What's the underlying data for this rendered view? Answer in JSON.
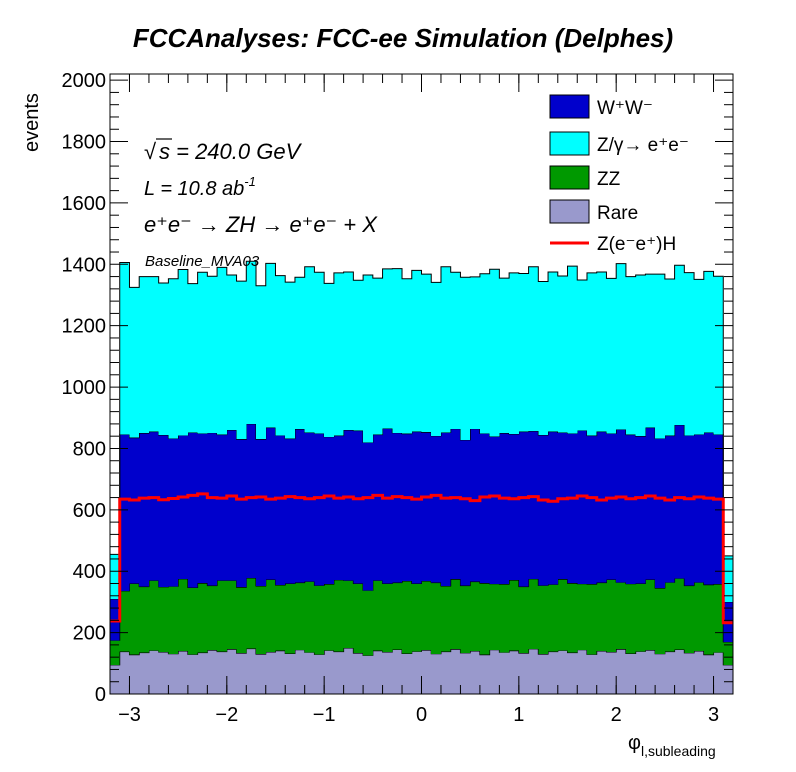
{
  "chart_data": {
    "type": "bar",
    "title": "FCCAnalyses: FCC-ee Simulation (Delphes)",
    "xlabel_main": "φ",
    "xlabel_sub": "l,subleading",
    "ylabel": "events",
    "xlim": [
      -3.2,
      3.2
    ],
    "ylim": [
      0,
      2020
    ],
    "x_ticks": [
      -3,
      -2,
      -1,
      0,
      1,
      2,
      3
    ],
    "x_tick_labels": [
      "−3",
      "−2",
      "−1",
      "0",
      "1",
      "2",
      "3"
    ],
    "y_ticks": [
      0,
      200,
      400,
      600,
      800,
      1000,
      1200,
      1400,
      1600,
      1800,
      2000
    ],
    "y_tick_labels": [
      "0",
      "200",
      "400",
      "600",
      "800",
      "1000",
      "1200",
      "1400",
      "1600",
      "1800",
      "2000"
    ],
    "bins": {
      "count": 64,
      "low": -3.2,
      "high": 3.2
    },
    "annotations": {
      "sqrt_s": "s = 240.0 GeV",
      "lumi_main": "L = 10.8 ab",
      "lumi_sup": "-1",
      "process": "e⁺e⁻ → ZH → e⁺e⁻ + X",
      "selection": "Baseline_MVA03"
    },
    "stack_order": [
      "Rare",
      "ZZ",
      "WW",
      "Zgamma"
    ],
    "series": [
      {
        "key": "Rare",
        "legend": "Rare",
        "color": "#9999cc",
        "values": [
          95,
          138,
          128,
          135,
          142,
          137,
          131,
          140,
          129,
          135,
          143,
          138,
          146,
          133,
          148,
          130,
          137,
          141,
          132,
          144,
          136,
          129,
          142,
          138,
          150,
          133,
          126,
          141,
          137,
          145,
          132,
          139,
          143,
          131,
          138,
          146,
          134,
          140,
          128,
          144,
          136,
          141,
          133,
          147,
          130,
          138,
          142,
          135,
          144,
          129,
          140,
          137,
          146,
          132,
          139,
          143,
          131,
          138,
          145,
          134,
          140,
          128,
          136,
          95
        ]
      },
      {
        "key": "ZZ",
        "legend": "ZZ",
        "color": "#009900",
        "values": [
          80,
          198,
          232,
          215,
          228,
          212,
          220,
          235,
          218,
          226,
          210,
          232,
          224,
          215,
          230,
          222,
          236,
          214,
          228,
          219,
          231,
          225,
          216,
          234,
          220,
          227,
          212,
          229,
          223,
          218,
          236,
          221,
          225,
          232,
          214,
          228,
          219,
          226,
          233,
          215,
          222,
          230,
          217,
          228,
          224,
          219,
          232,
          226,
          215,
          229,
          223,
          236,
          218,
          227,
          221,
          230,
          214,
          226,
          232,
          219,
          224,
          228,
          222,
          75
        ]
      },
      {
        "key": "WW",
        "legend": "W⁺W⁻",
        "color": "#0000cc",
        "values": [
          135,
          510,
          475,
          500,
          485,
          495,
          482,
          468,
          505,
          488,
          498,
          475,
          490,
          482,
          502,
          478,
          495,
          488,
          472,
          500,
          485,
          495,
          480,
          470,
          490,
          498,
          482,
          475,
          505,
          488,
          480,
          495,
          485,
          478,
          500,
          490,
          475,
          498,
          488,
          480,
          492,
          476,
          505,
          482,
          490,
          498,
          478,
          488,
          500,
          484,
          492,
          476,
          498,
          486,
          480,
          495,
          488,
          478,
          500,
          490,
          482,
          496,
          488,
          130
        ]
      },
      {
        "key": "Zgamma",
        "legend": "Z/γ→ e⁺e⁻",
        "color": "#00ffff",
        "values": [
          145,
          560,
          490,
          510,
          505,
          495,
          520,
          540,
          485,
          525,
          510,
          545,
          505,
          515,
          530,
          500,
          535,
          520,
          510,
          495,
          540,
          525,
          500,
          530,
          515,
          490,
          545,
          510,
          520,
          535,
          505,
          525,
          515,
          500,
          540,
          510,
          530,
          495,
          520,
          545,
          505,
          525,
          515,
          535,
          500,
          520,
          510,
          545,
          490,
          530,
          520,
          505,
          540,
          515,
          525,
          500,
          535,
          510,
          520,
          530,
          505,
          525,
          515,
          150
        ]
      }
    ],
    "signal": {
      "key": "Signal",
      "legend": "Z(e⁻e⁺)H",
      "color": "#ff0000",
      "values": [
        238,
        635,
        632,
        638,
        640,
        633,
        637,
        642,
        647,
        652,
        640,
        638,
        645,
        635,
        640,
        642,
        635,
        638,
        643,
        640,
        636,
        640,
        645,
        638,
        642,
        636,
        640,
        647,
        638,
        643,
        640,
        635,
        642,
        647,
        638,
        640,
        636,
        630,
        642,
        645,
        638,
        636,
        640,
        643,
        632,
        628,
        636,
        638,
        645,
        640,
        632,
        638,
        642,
        636,
        640,
        645,
        638,
        632,
        640,
        636,
        642,
        638,
        635,
        232
      ]
    }
  }
}
